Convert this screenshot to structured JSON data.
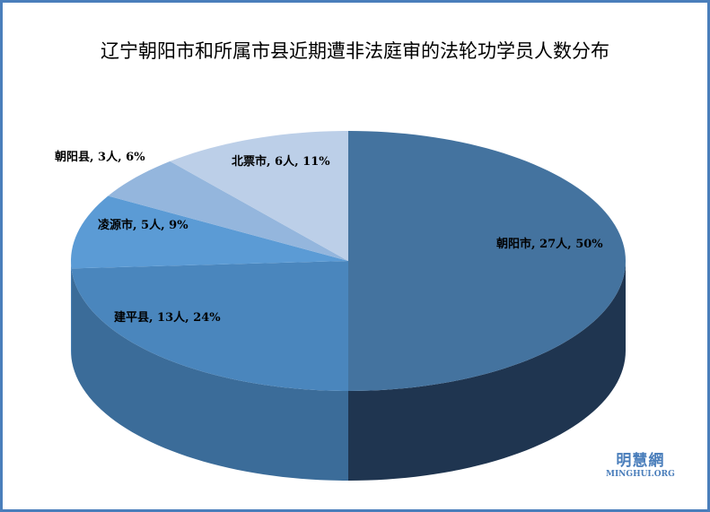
{
  "chart_data": {
    "type": "pie",
    "title": "辽宁朝阳市和所属市县近期遭非法庭审的法轮功学员人数分布",
    "categories": [
      "朝阳市",
      "建平县",
      "凌源市",
      "朝阳县",
      "北票市"
    ],
    "values": [
      27,
      13,
      5,
      3,
      6
    ],
    "percents": [
      50,
      24,
      9,
      6,
      11
    ],
    "data_labels": [
      "朝阳市, 27人, 50%",
      "建平县, 13人, 24%",
      "凌源市, 5人, 9%",
      "朝阳县, 3人, 6%",
      "北票市, 6人, 11%"
    ],
    "colors": [
      "#44739f",
      "#4a86bd",
      "#5b9bd5",
      "#94b6dd",
      "#bccfe8"
    ],
    "side_colors": [
      "#1f3550",
      "#3b6c99",
      "#4d8ac4",
      "#7fa3cc",
      "#a9c0de"
    ],
    "style": "3d",
    "legend": "none"
  },
  "watermark": {
    "cn": "明慧網",
    "en": "MINGHUI.ORG"
  }
}
